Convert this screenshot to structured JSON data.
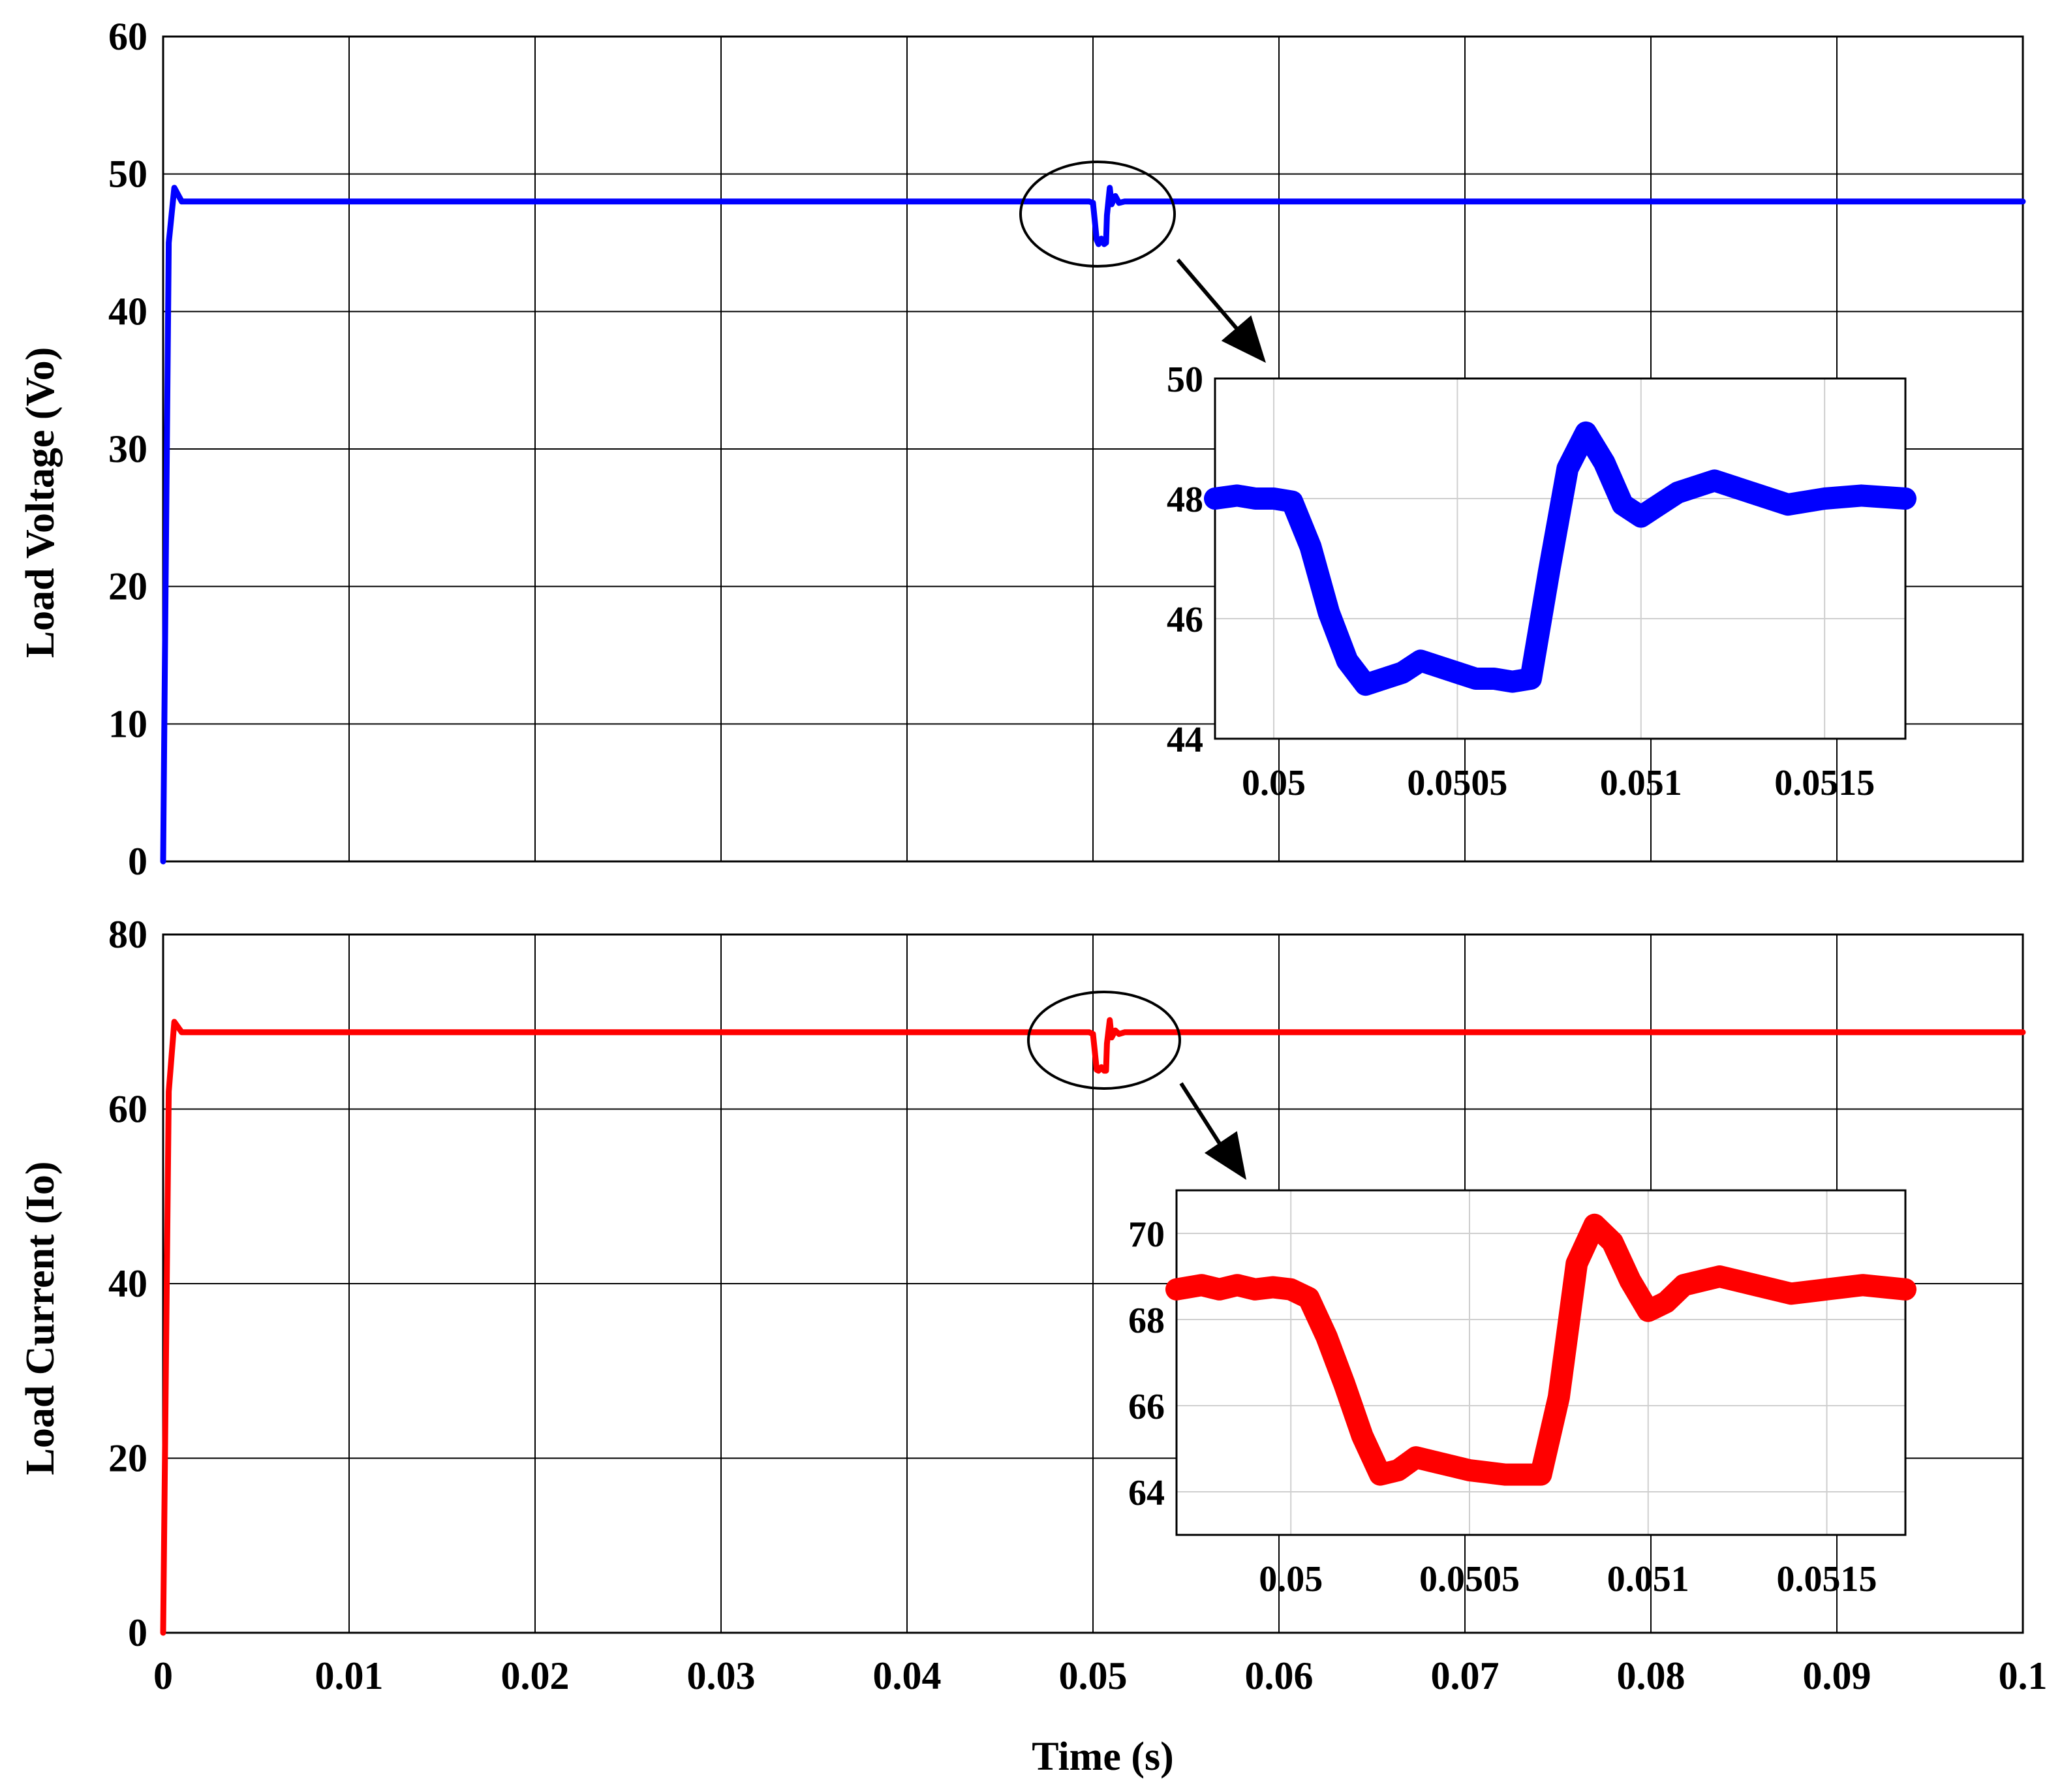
{
  "chart_data": [
    {
      "type": "line",
      "title": "",
      "xlabel": "",
      "ylabel": "Load Voltage (Vo)",
      "xlim": [
        0,
        0.1
      ],
      "ylim": [
        0,
        60
      ],
      "grid": true,
      "xticks": [
        "",
        "",
        "",
        "",
        "",
        "",
        "",
        "",
        "",
        "",
        ""
      ],
      "yticks": [
        "0",
        "10",
        "20",
        "30",
        "40",
        "50",
        "60"
      ],
      "series": [
        {
          "color": "#0000ff",
          "x": [
            0,
            0.0001,
            0.0003,
            0.0006,
            0.001,
            0.01,
            0.02,
            0.03,
            0.04,
            0.0498,
            0.05,
            0.0502,
            0.0503,
            0.05045,
            0.0506,
            0.0507,
            0.05075,
            0.0509,
            0.051,
            0.0512,
            0.0514,
            0.0517,
            0.06,
            0.07,
            0.08,
            0.09,
            0.1
          ],
          "y": [
            0,
            15,
            45,
            49,
            48,
            48,
            48,
            48,
            48,
            48,
            47.9,
            45.2,
            44.9,
            45.3,
            44.9,
            45.0,
            47.0,
            49.0,
            47.8,
            48.4,
            47.9,
            48.0,
            48,
            48,
            48,
            48,
            48
          ]
        }
      ],
      "inset": {
        "xlim": [
          0.04984,
          0.05172
        ],
        "ylim": [
          44,
          50
        ],
        "xticks": [
          "0.05",
          "0.0505",
          "0.051",
          "0.0515"
        ],
        "yticks": [
          "44",
          "46",
          "48",
          "50"
        ],
        "series": {
          "color": "#0000ff",
          "x": [
            0.04984,
            0.0499,
            0.04995,
            0.05,
            0.05005,
            0.0501,
            0.05015,
            0.0502,
            0.05025,
            0.0503,
            0.05035,
            0.0504,
            0.05045,
            0.0505,
            0.05055,
            0.0506,
            0.05065,
            0.0507,
            0.05075,
            0.0508,
            0.05085,
            0.0509,
            0.05095,
            0.051,
            0.05105,
            0.0511,
            0.0512,
            0.0513,
            0.0514,
            0.0515,
            0.0516,
            0.05172
          ],
          "y": [
            48.0,
            48.05,
            48.0,
            48.0,
            47.95,
            47.2,
            46.1,
            45.3,
            44.9,
            45.0,
            45.1,
            45.3,
            45.2,
            45.1,
            45.0,
            45.0,
            44.95,
            45.0,
            46.8,
            48.5,
            49.1,
            48.6,
            47.9,
            47.7,
            47.9,
            48.1,
            48.3,
            48.1,
            47.9,
            48.0,
            48.05,
            48.0
          ]
        }
      }
    },
    {
      "type": "line",
      "title": "",
      "xlabel": "Time (s)",
      "ylabel": "Load Current (Io)",
      "xlim": [
        0,
        0.1
      ],
      "ylim": [
        0,
        80
      ],
      "grid": true,
      "xticks": [
        "0",
        "0.01",
        "0.02",
        "0.03",
        "0.04",
        "0.05",
        "0.06",
        "0.07",
        "0.08",
        "0.09",
        "0.1"
      ],
      "yticks": [
        "0",
        "20",
        "40",
        "60",
        "80"
      ],
      "series": [
        {
          "color": "#ff0000",
          "x": [
            0,
            0.0001,
            0.0003,
            0.0006,
            0.001,
            0.01,
            0.02,
            0.03,
            0.04,
            0.0498,
            0.05,
            0.0502,
            0.0503,
            0.05045,
            0.0506,
            0.0507,
            0.05075,
            0.0509,
            0.051,
            0.0512,
            0.0514,
            0.0517,
            0.06,
            0.07,
            0.08,
            0.09,
            0.1
          ],
          "y": [
            0,
            20,
            62,
            70,
            68.8,
            68.8,
            68.8,
            68.8,
            68.8,
            68.8,
            68.6,
            64.5,
            64.4,
            64.8,
            64.4,
            64.4,
            67.5,
            70.2,
            68.2,
            69.0,
            68.6,
            68.8,
            68.8,
            68.8,
            68.8,
            68.8,
            68.8
          ]
        }
      ],
      "inset": {
        "xlim": [
          0.04968,
          0.05172
        ],
        "ylim": [
          63,
          71
        ],
        "xticks": [
          "0.05",
          "0.0505",
          "0.051",
          "0.0515"
        ],
        "yticks": [
          "64",
          "66",
          "68",
          "70"
        ],
        "series": {
          "color": "#ff0000",
          "x": [
            0.04968,
            0.04975,
            0.0498,
            0.04985,
            0.0499,
            0.04995,
            0.05,
            0.05005,
            0.0501,
            0.05015,
            0.0502,
            0.05025,
            0.0503,
            0.05035,
            0.0504,
            0.05045,
            0.0505,
            0.05055,
            0.0506,
            0.05065,
            0.0507,
            0.05075,
            0.0508,
            0.05085,
            0.0509,
            0.05095,
            0.051,
            0.05105,
            0.0511,
            0.0512,
            0.0513,
            0.0514,
            0.0515,
            0.0516,
            0.05172
          ],
          "y": [
            68.7,
            68.8,
            68.7,
            68.8,
            68.7,
            68.75,
            68.7,
            68.5,
            67.6,
            66.5,
            65.3,
            64.4,
            64.5,
            64.8,
            64.7,
            64.6,
            64.5,
            64.45,
            64.4,
            64.4,
            64.4,
            66.2,
            69.3,
            70.2,
            69.8,
            68.9,
            68.2,
            68.4,
            68.8,
            69.0,
            68.8,
            68.6,
            68.7,
            68.8,
            68.7
          ]
        }
      }
    }
  ]
}
